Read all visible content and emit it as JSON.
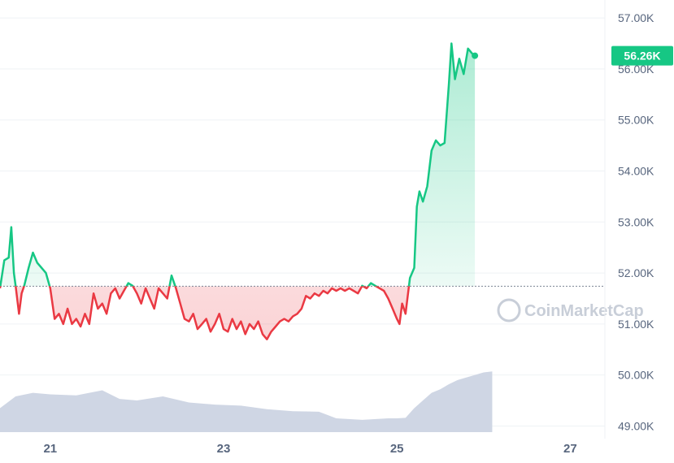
{
  "chart_data": {
    "type": "line",
    "yticks": [
      "57.00K",
      "56.00K",
      "55.00K",
      "54.00K",
      "53.00K",
      "52.00K",
      "51.00K",
      "50.00K",
      "49.00K"
    ],
    "ytick_values": [
      57000,
      56000,
      55000,
      54000,
      53000,
      52000,
      51000,
      50000,
      49000
    ],
    "ylim": [
      48800,
      57400
    ],
    "xticks": [
      "21",
      "23",
      "25",
      "27"
    ],
    "xtick_values": [
      21,
      23,
      25,
      27
    ],
    "xlim": [
      20.42,
      27.4
    ],
    "baseline": 51740,
    "current_value_label": "56.26K",
    "current_value": 56260,
    "watermark": "CoinMarketCap",
    "colors": {
      "up": "#16c784",
      "down": "#ea3943",
      "grid": "#eff2f5",
      "volume": "#cfd6e4",
      "axis_text": "#58667e"
    },
    "series": [
      {
        "values": [
          [
            20.42,
            51700
          ],
          [
            20.47,
            52250
          ],
          [
            20.52,
            52300
          ],
          [
            20.55,
            52900
          ],
          [
            20.58,
            52000
          ],
          [
            20.6,
            51750
          ],
          [
            20.64,
            51200
          ],
          [
            20.67,
            51600
          ],
          [
            20.7,
            51750
          ],
          [
            20.75,
            52100
          ],
          [
            20.8,
            52400
          ],
          [
            20.85,
            52200
          ],
          [
            20.9,
            52100
          ],
          [
            20.95,
            52000
          ],
          [
            21.0,
            51700
          ],
          [
            21.05,
            51100
          ],
          [
            21.1,
            51200
          ],
          [
            21.15,
            51000
          ],
          [
            21.2,
            51300
          ],
          [
            21.25,
            51000
          ],
          [
            21.3,
            51100
          ],
          [
            21.35,
            50950
          ],
          [
            21.4,
            51200
          ],
          [
            21.45,
            51000
          ],
          [
            21.5,
            51600
          ],
          [
            21.55,
            51300
          ],
          [
            21.6,
            51400
          ],
          [
            21.65,
            51200
          ],
          [
            21.7,
            51600
          ],
          [
            21.75,
            51700
          ],
          [
            21.8,
            51500
          ],
          [
            21.85,
            51650
          ],
          [
            21.9,
            51800
          ],
          [
            21.95,
            51750
          ],
          [
            22.0,
            51600
          ],
          [
            22.05,
            51400
          ],
          [
            22.1,
            51700
          ],
          [
            22.15,
            51500
          ],
          [
            22.2,
            51300
          ],
          [
            22.25,
            51700
          ],
          [
            22.3,
            51600
          ],
          [
            22.35,
            51500
          ],
          [
            22.4,
            51950
          ],
          [
            22.45,
            51700
          ],
          [
            22.5,
            51400
          ],
          [
            22.55,
            51100
          ],
          [
            22.6,
            51050
          ],
          [
            22.65,
            51200
          ],
          [
            22.7,
            50900
          ],
          [
            22.75,
            51000
          ],
          [
            22.8,
            51100
          ],
          [
            22.85,
            50850
          ],
          [
            22.9,
            51000
          ],
          [
            22.95,
            51200
          ],
          [
            23.0,
            50900
          ],
          [
            23.05,
            50850
          ],
          [
            23.1,
            51100
          ],
          [
            23.15,
            50900
          ],
          [
            23.2,
            51050
          ],
          [
            23.25,
            50800
          ],
          [
            23.3,
            51000
          ],
          [
            23.35,
            50900
          ],
          [
            23.4,
            51050
          ],
          [
            23.45,
            50800
          ],
          [
            23.5,
            50700
          ],
          [
            23.55,
            50850
          ],
          [
            23.6,
            50950
          ],
          [
            23.65,
            51050
          ],
          [
            23.7,
            51100
          ],
          [
            23.75,
            51050
          ],
          [
            23.8,
            51150
          ],
          [
            23.85,
            51200
          ],
          [
            23.9,
            51300
          ],
          [
            23.95,
            51550
          ],
          [
            24.0,
            51500
          ],
          [
            24.05,
            51600
          ],
          [
            24.1,
            51550
          ],
          [
            24.15,
            51650
          ],
          [
            24.2,
            51600
          ],
          [
            24.25,
            51700
          ],
          [
            24.3,
            51650
          ],
          [
            24.35,
            51700
          ],
          [
            24.4,
            51650
          ],
          [
            24.45,
            51700
          ],
          [
            24.5,
            51650
          ],
          [
            24.55,
            51600
          ],
          [
            24.6,
            51750
          ],
          [
            24.65,
            51700
          ],
          [
            24.7,
            51800
          ],
          [
            24.75,
            51750
          ],
          [
            24.8,
            51700
          ],
          [
            24.85,
            51650
          ],
          [
            24.9,
            51500
          ],
          [
            24.95,
            51300
          ],
          [
            25.0,
            51100
          ],
          [
            25.03,
            51000
          ],
          [
            25.06,
            51400
          ],
          [
            25.1,
            51200
          ],
          [
            25.15,
            51900
          ],
          [
            25.2,
            52100
          ],
          [
            25.23,
            53300
          ],
          [
            25.26,
            53600
          ],
          [
            25.3,
            53400
          ],
          [
            25.35,
            53700
          ],
          [
            25.4,
            54400
          ],
          [
            25.45,
            54600
          ],
          [
            25.5,
            54500
          ],
          [
            25.55,
            54550
          ],
          [
            25.6,
            55700
          ],
          [
            25.63,
            56500
          ],
          [
            25.67,
            55800
          ],
          [
            25.72,
            56200
          ],
          [
            25.77,
            55900
          ],
          [
            25.82,
            56400
          ],
          [
            25.87,
            56300
          ],
          [
            25.9,
            56260
          ]
        ]
      }
    ],
    "volume": [
      [
        20.42,
        49350
      ],
      [
        20.6,
        49580
      ],
      [
        20.8,
        49650
      ],
      [
        21.0,
        49620
      ],
      [
        21.3,
        49600
      ],
      [
        21.6,
        49700
      ],
      [
        21.8,
        49530
      ],
      [
        22.0,
        49500
      ],
      [
        22.3,
        49580
      ],
      [
        22.6,
        49460
      ],
      [
        22.9,
        49420
      ],
      [
        23.2,
        49400
      ],
      [
        23.5,
        49330
      ],
      [
        23.8,
        49290
      ],
      [
        24.1,
        49280
      ],
      [
        24.3,
        49150
      ],
      [
        24.6,
        49120
      ],
      [
        24.9,
        49150
      ],
      [
        25.0,
        49150
      ],
      [
        25.1,
        49160
      ],
      [
        25.2,
        49350
      ],
      [
        25.3,
        49500
      ],
      [
        25.4,
        49650
      ],
      [
        25.5,
        49720
      ],
      [
        25.6,
        49820
      ],
      [
        25.7,
        49900
      ],
      [
        25.9,
        50000
      ],
      [
        26.0,
        50050
      ],
      [
        26.1,
        50070
      ]
    ]
  }
}
